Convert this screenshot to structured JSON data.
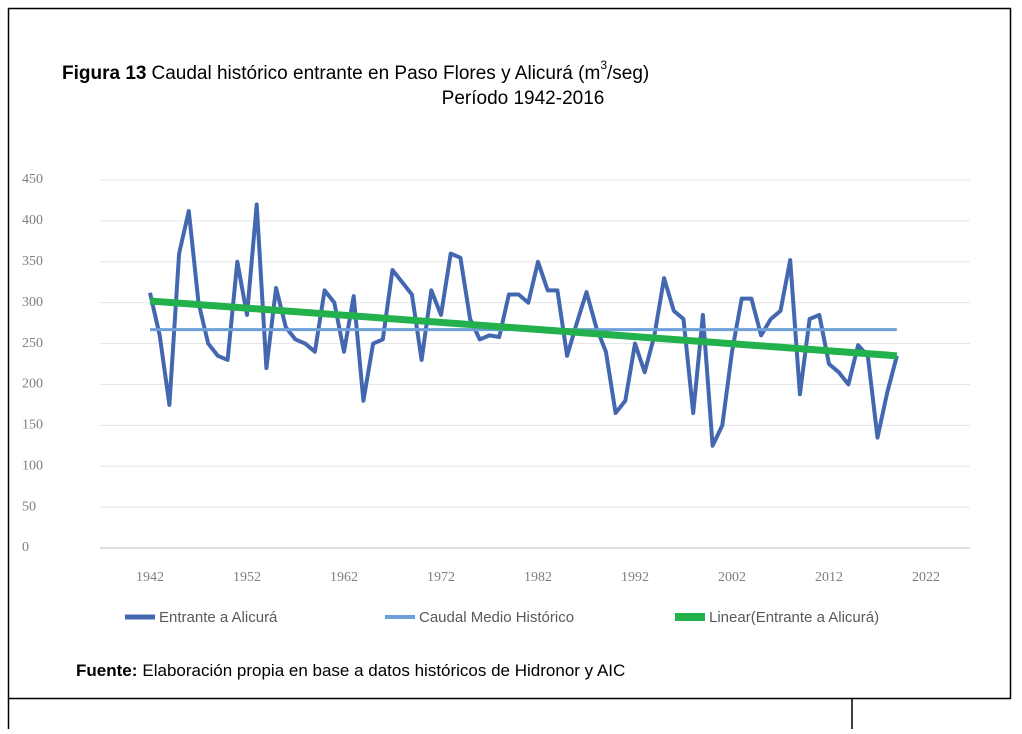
{
  "chart_data": {
    "type": "line",
    "title_label": "Figura 13",
    "title": "Caudal histórico entrante en Paso Flores y Alicurá (m",
    "title_superscript": "3",
    "title_end": "/seg)",
    "subtitle": "Período 1942-2016",
    "source_label": "Fuente:",
    "source": "Elaboración propia en base a datos históricos de Hidronor y AIC",
    "xlim": [
      1942,
      2022
    ],
    "xticks": [
      1942,
      1952,
      1962,
      1972,
      1982,
      1992,
      2002,
      2012,
      2022
    ],
    "ylim": [
      0,
      450
    ],
    "yticks": [
      0,
      50,
      100,
      150,
      200,
      250,
      300,
      350,
      400,
      450
    ],
    "grid": true,
    "legend": "bottom",
    "series": [
      {
        "name": "Entrante a Alicurá",
        "color": "#4468b0",
        "x": [
          1942,
          1943,
          1944,
          1945,
          1946,
          1947,
          1948,
          1949,
          1950,
          1951,
          1952,
          1953,
          1954,
          1955,
          1956,
          1957,
          1958,
          1959,
          1960,
          1961,
          1962,
          1963,
          1964,
          1965,
          1966,
          1967,
          1968,
          1969,
          1970,
          1971,
          1972,
          1973,
          1974,
          1975,
          1976,
          1977,
          1978,
          1979,
          1980,
          1981,
          1982,
          1983,
          1984,
          1985,
          1986,
          1987,
          1988,
          1989,
          1990,
          1991,
          1992,
          1993,
          1994,
          1995,
          1996,
          1997,
          1998,
          1999,
          2000,
          2001,
          2002,
          2003,
          2004,
          2005,
          2006,
          2007,
          2008,
          2009,
          2010,
          2011,
          2012,
          2013,
          2014,
          2015,
          2016,
          2017,
          2018,
          2019
        ],
        "values": [
          312,
          260,
          175,
          360,
          412,
          300,
          250,
          235,
          230,
          350,
          285,
          420,
          220,
          318,
          270,
          255,
          250,
          240,
          315,
          300,
          240,
          308,
          180,
          250,
          255,
          340,
          325,
          310,
          230,
          315,
          285,
          360,
          355,
          280,
          255,
          260,
          258,
          310,
          310,
          300,
          350,
          315,
          315,
          235,
          275,
          313,
          270,
          240,
          165,
          180,
          250,
          215,
          260,
          330,
          290,
          280,
          165,
          285,
          125,
          150,
          240,
          305,
          305,
          260,
          280,
          290,
          352,
          188,
          280,
          285,
          225,
          215,
          200,
          248,
          235,
          135,
          190,
          235
        ]
      },
      {
        "name": "Caudal Medio Histórico",
        "color": "#6e9fd8",
        "x": [
          1942,
          2019
        ],
        "values": [
          267,
          267
        ]
      },
      {
        "name": "Linear(Entrante a Alicurá)",
        "color": "#22b14c",
        "x": [
          1942,
          2019
        ],
        "values": [
          302,
          235
        ]
      }
    ]
  }
}
